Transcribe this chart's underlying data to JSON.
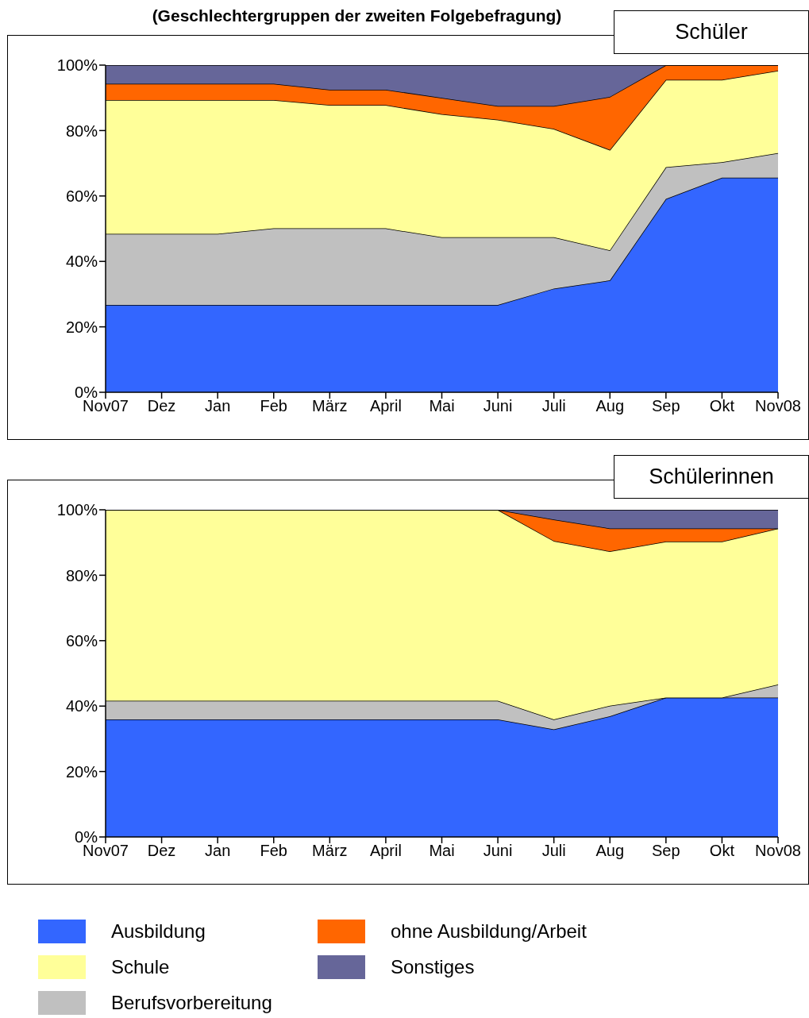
{
  "chart_data": [
    {
      "type": "area",
      "title": "(Geschlechtergruppen der zweiten Folgebefragung)",
      "subtitle": "Schüler",
      "stacked": true,
      "legend": "bottom",
      "categories": [
        "Nov07",
        "Dez",
        "Jan",
        "Feb",
        "März",
        "April",
        "Mai",
        "Juni",
        "Juli",
        "Aug",
        "Sep",
        "Okt",
        "Nov08"
      ],
      "ylim": [
        0,
        100
      ],
      "yticks": [
        {
          "value": 0,
          "label": "0%"
        },
        {
          "value": 20,
          "label": "20%"
        },
        {
          "value": 40,
          "label": "40%"
        },
        {
          "value": 60,
          "label": "60%"
        },
        {
          "value": 80,
          "label": "80%"
        },
        {
          "value": 100,
          "label": "100%"
        }
      ],
      "series": [
        {
          "name": "Ausbildung",
          "color": "#3366ff",
          "values": [
            26.7,
            26.7,
            26.7,
            26.7,
            26.7,
            26.7,
            26.7,
            26.7,
            31.7,
            34.2,
            59.1,
            65.6,
            65.6
          ]
        },
        {
          "name": "Berufsvorbereitung",
          "color": "#c0c0c0",
          "values": [
            21.7,
            21.7,
            21.7,
            23.4,
            23.4,
            23.4,
            20.7,
            20.7,
            15.7,
            9.2,
            9.7,
            4.7,
            7.5
          ]
        },
        {
          "name": "Schule",
          "color": "#ffff99",
          "values": [
            40.9,
            40.9,
            40.9,
            39.2,
            37.7,
            37.7,
            37.6,
            35.9,
            33.1,
            30.7,
            26.7,
            25.2,
            25.2
          ]
        },
        {
          "name": "ohne Ausbildung/Arbeit",
          "color": "#ff6600",
          "values": [
            5.0,
            5.0,
            5.0,
            5.0,
            4.7,
            4.7,
            5.0,
            4.2,
            7.0,
            16.2,
            4.5,
            4.5,
            1.7
          ]
        },
        {
          "name": "Sonstiges",
          "color": "#666699",
          "values": [
            5.7,
            5.7,
            5.7,
            5.7,
            7.5,
            7.5,
            10.0,
            12.5,
            12.5,
            9.7,
            0,
            0,
            0
          ]
        }
      ]
    },
    {
      "type": "area",
      "subtitle": "Schülerinnen",
      "stacked": true,
      "categories": [
        "Nov07",
        "Dez",
        "Jan",
        "Feb",
        "März",
        "April",
        "Mai",
        "Juni",
        "Juli",
        "Aug",
        "Sep",
        "Okt",
        "Nov08"
      ],
      "ylim": [
        0,
        100
      ],
      "yticks": [
        {
          "value": 0,
          "label": "0%"
        },
        {
          "value": 20,
          "label": "20%"
        },
        {
          "value": 40,
          "label": "40%"
        },
        {
          "value": 60,
          "label": "60%"
        },
        {
          "value": 80,
          "label": "80%"
        },
        {
          "value": 100,
          "label": "100%"
        }
      ],
      "series": [
        {
          "color": "#3366ff",
          "values": [
            35.9,
            35.9,
            35.9,
            35.9,
            35.9,
            35.9,
            35.9,
            35.9,
            32.9,
            36.9,
            42.6,
            42.6,
            42.6
          ]
        },
        {
          "color": "#c0c0c0",
          "values": [
            5.7,
            5.7,
            5.7,
            5.7,
            5.7,
            5.7,
            5.7,
            5.7,
            3.0,
            3.2,
            0,
            0,
            4.0
          ]
        },
        {
          "color": "#ffff99",
          "values": [
            58.4,
            58.4,
            58.4,
            58.4,
            58.4,
            58.4,
            58.4,
            58.4,
            54.6,
            47.2,
            47.7,
            47.7,
            47.7
          ]
        },
        {
          "color": "#ff6600",
          "values": [
            0,
            0,
            0,
            0,
            0,
            0,
            0,
            0,
            6.5,
            7.0,
            4.0,
            4.0,
            0
          ]
        },
        {
          "color": "#666699",
          "values": [
            0,
            0,
            0,
            0,
            0,
            0,
            0,
            0,
            3.0,
            5.7,
            5.7,
            5.7,
            5.7
          ]
        }
      ]
    }
  ]
}
